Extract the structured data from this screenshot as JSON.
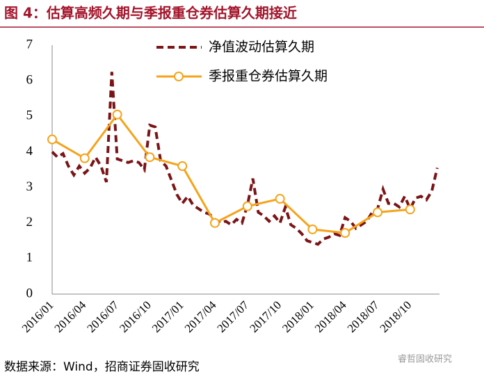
{
  "header": {
    "title": "图 4：估算高频久期与季报重仓券估算久期接近"
  },
  "chart_data": {
    "type": "line",
    "categories": [
      "2016/01",
      null,
      null,
      null,
      null,
      null,
      "2016/04",
      null,
      null,
      null,
      null,
      null,
      "2016/07",
      null,
      null,
      null,
      null,
      null,
      "2016/10",
      null,
      null,
      null,
      null,
      null,
      "2017/01",
      null,
      null,
      null,
      null,
      null,
      "2017/04",
      null,
      null,
      null,
      null,
      null,
      "2017/07",
      null,
      null,
      null,
      null,
      null,
      "2017/10",
      null,
      null,
      null,
      null,
      null,
      "2018/01",
      null,
      null,
      null,
      null,
      null,
      "2018/04",
      null,
      null,
      null,
      null,
      null,
      "2018/07",
      null,
      null,
      null,
      null,
      null,
      "2018/10",
      null,
      null,
      null,
      null,
      null
    ],
    "series": [
      {
        "name": "净值波动估算久期",
        "color": "#7b1416",
        "dashed": true,
        "values": [
          4.0,
          3.85,
          3.95,
          3.6,
          3.35,
          3.6,
          3.4,
          3.55,
          3.85,
          3.6,
          3.15,
          6.25,
          3.8,
          3.75,
          3.7,
          3.75,
          3.7,
          3.5,
          4.75,
          4.7,
          3.75,
          3.6,
          3.2,
          2.8,
          2.55,
          2.75,
          2.5,
          2.4,
          2.3,
          2.25,
          2.1,
          2.0,
          2.05,
          1.95,
          2.1,
          2.0,
          2.5,
          3.25,
          2.3,
          2.2,
          2.05,
          2.2,
          2.0,
          2.45,
          1.95,
          1.85,
          1.7,
          1.5,
          1.45,
          1.4,
          1.55,
          1.6,
          1.7,
          1.65,
          2.15,
          2.05,
          1.85,
          1.95,
          2.05,
          2.3,
          2.4,
          2.95,
          2.55,
          2.55,
          2.45,
          2.75,
          2.4,
          2.7,
          2.75,
          2.65,
          2.9,
          3.55
        ]
      },
      {
        "name": "季报重仓券估算久期",
        "color": "#f5a31a",
        "markers": true,
        "x": [
          "2016/01",
          "2016/04",
          "2016/07",
          "2016/10",
          "2017/01",
          "2017/04",
          "2017/07",
          "2017/10",
          "2018/01",
          "2018/04",
          "2018/07",
          "2018/10"
        ],
        "values": [
          4.35,
          3.82,
          5.05,
          3.85,
          3.6,
          2.0,
          2.47,
          2.68,
          1.82,
          1.72,
          2.3,
          2.38
        ]
      }
    ],
    "ylim": [
      0,
      7
    ],
    "yticks": [
      0,
      1,
      2,
      3,
      4,
      5,
      6,
      7
    ],
    "grid": false,
    "legend": "top"
  },
  "footer": {
    "source": "数据来源：Wind，招商证券固收研究",
    "watermark": "睿哲固收研究"
  }
}
